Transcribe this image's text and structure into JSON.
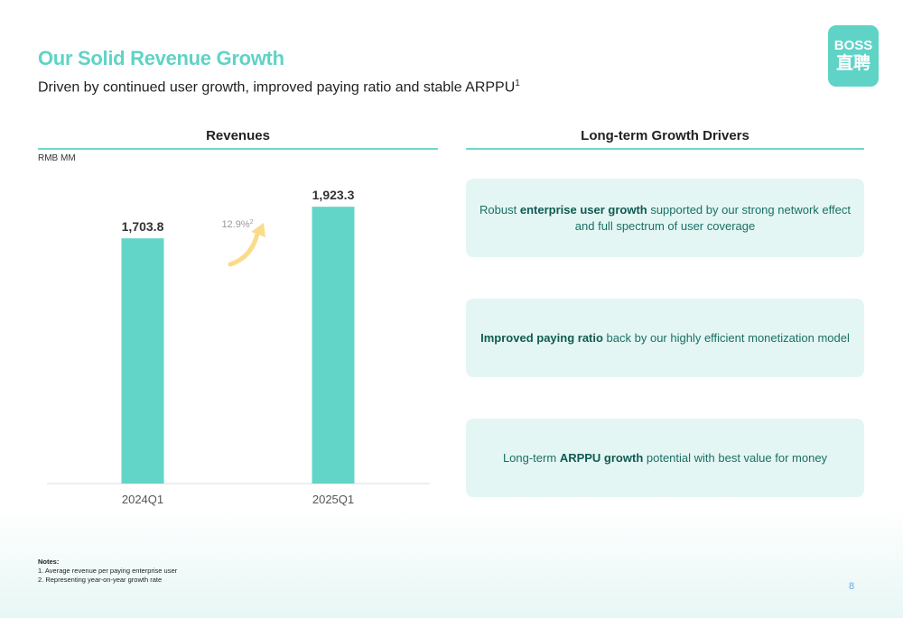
{
  "header": {
    "title": "Our Solid Revenue Growth",
    "subtitle": "Driven by continued user growth, improved paying ratio and stable ARPPU",
    "subtitle_sup": "1"
  },
  "logo": {
    "line1": "BOSS",
    "line2": "直聘"
  },
  "revenues": {
    "heading": "Revenues",
    "units": "RMB MM",
    "growth_label": "12.9%",
    "growth_sup": "2"
  },
  "chart_data": {
    "type": "bar",
    "title": "Revenues",
    "ylabel": "RMB MM",
    "categories": [
      "2024Q1",
      "2025Q1"
    ],
    "values": [
      1703.8,
      1923.3
    ],
    "value_labels": [
      "1,703.8",
      "1,923.3"
    ],
    "ylim": [
      0,
      2200
    ],
    "bar_color": "#63d5c8",
    "grid": false,
    "annotation": {
      "text": "12.9%",
      "sup": "2"
    }
  },
  "drivers": {
    "heading": "Long-term Growth Drivers",
    "items": [
      {
        "pre": "Robust ",
        "bold": "enterprise user growth",
        "post": " supported by our strong network effect and full spectrum of user coverage"
      },
      {
        "pre": "",
        "bold": "Improved paying ratio",
        "post": " back by our highly efficient monetization model"
      },
      {
        "pre": "Long-term ",
        "bold": "ARPPU growth",
        "post": " potential with best value for money"
      }
    ]
  },
  "notes": {
    "title": "Notes:",
    "items": [
      "1. Average revenue per paying enterprise user",
      "2. Representing year-on-year growth rate"
    ]
  },
  "page_number": "8",
  "colors": {
    "accent": "#5fd3c6",
    "bar": "#63d5c8",
    "driver_bg": "#e3f6f3",
    "driver_text": "#1a6f66",
    "arrow": "#f9dc8a"
  }
}
